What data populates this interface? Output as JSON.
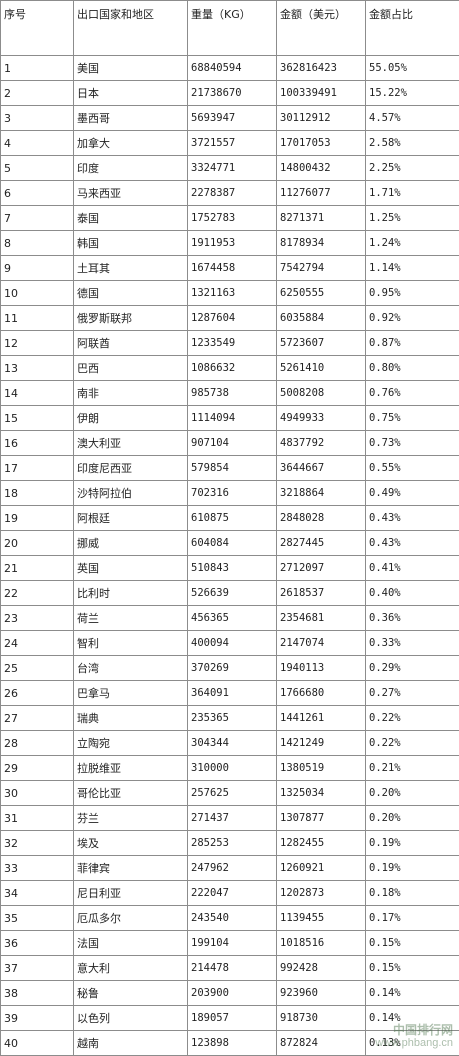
{
  "table": {
    "headers": [
      "序号",
      "出口国家和地区",
      "重量（KG）",
      "金额（美元）",
      "金额占比"
    ],
    "rows": [
      [
        "1",
        "美国",
        "68840594",
        "362816423",
        "55.05%"
      ],
      [
        "2",
        "日本",
        "21738670",
        "100339491",
        "15.22%"
      ],
      [
        "3",
        "墨西哥",
        "5693947",
        "30112912",
        "4.57%"
      ],
      [
        "4",
        "加拿大",
        "3721557",
        "17017053",
        "2.58%"
      ],
      [
        "5",
        "印度",
        "3324771",
        "14800432",
        "2.25%"
      ],
      [
        "6",
        "马来西亚",
        "2278387",
        "11276077",
        "1.71%"
      ],
      [
        "7",
        "泰国",
        "1752783",
        "8271371",
        "1.25%"
      ],
      [
        "8",
        "韩国",
        "1911953",
        "8178934",
        "1.24%"
      ],
      [
        "9",
        "土耳其",
        "1674458",
        "7542794",
        "1.14%"
      ],
      [
        "10",
        "德国",
        "1321163",
        "6250555",
        "0.95%"
      ],
      [
        "11",
        "俄罗斯联邦",
        "1287604",
        "6035884",
        "0.92%"
      ],
      [
        "12",
        "阿联酋",
        "1233549",
        "5723607",
        "0.87%"
      ],
      [
        "13",
        "巴西",
        "1086632",
        "5261410",
        "0.80%"
      ],
      [
        "14",
        "南非",
        "985738",
        "5008208",
        "0.76%"
      ],
      [
        "15",
        "伊朗",
        "1114094",
        "4949933",
        "0.75%"
      ],
      [
        "16",
        "澳大利亚",
        "907104",
        "4837792",
        "0.73%"
      ],
      [
        "17",
        "印度尼西亚",
        "579854",
        "3644667",
        "0.55%"
      ],
      [
        "18",
        "沙特阿拉伯",
        "702316",
        "3218864",
        "0.49%"
      ],
      [
        "19",
        "阿根廷",
        "610875",
        "2848028",
        "0.43%"
      ],
      [
        "20",
        "挪威",
        "604084",
        "2827445",
        "0.43%"
      ],
      [
        "21",
        "英国",
        "510843",
        "2712097",
        "0.41%"
      ],
      [
        "22",
        "比利时",
        "526639",
        "2618537",
        "0.40%"
      ],
      [
        "23",
        "荷兰",
        "456365",
        "2354681",
        "0.36%"
      ],
      [
        "24",
        "智利",
        "400094",
        "2147074",
        "0.33%"
      ],
      [
        "25",
        "台湾",
        "370269",
        "1940113",
        "0.29%"
      ],
      [
        "26",
        "巴拿马",
        "364091",
        "1766680",
        "0.27%"
      ],
      [
        "27",
        "瑞典",
        "235365",
        "1441261",
        "0.22%"
      ],
      [
        "28",
        "立陶宛",
        "304344",
        "1421249",
        "0.22%"
      ],
      [
        "29",
        "拉脱维亚",
        "310000",
        "1380519",
        "0.21%"
      ],
      [
        "30",
        "哥伦比亚",
        "257625",
        "1325034",
        "0.20%"
      ],
      [
        "31",
        "芬兰",
        "271437",
        "1307877",
        "0.20%"
      ],
      [
        "32",
        "埃及",
        "285253",
        "1282455",
        "0.19%"
      ],
      [
        "33",
        "菲律宾",
        "247962",
        "1260921",
        "0.19%"
      ],
      [
        "34",
        "尼日利亚",
        "222047",
        "1202873",
        "0.18%"
      ],
      [
        "35",
        "厄瓜多尔",
        "243540",
        "1139455",
        "0.17%"
      ],
      [
        "36",
        "法国",
        "199104",
        "1018516",
        "0.15%"
      ],
      [
        "37",
        "意大利",
        "214478",
        "992428",
        "0.15%"
      ],
      [
        "38",
        "秘鲁",
        "203900",
        "923960",
        "0.14%"
      ],
      [
        "39",
        "以色列",
        "189057",
        "918730",
        "0.14%"
      ],
      [
        "40",
        "越南",
        "123898",
        "872824",
        "0.13%"
      ]
    ]
  },
  "watermark": {
    "text_cn": "中国排行网",
    "text_url": "www.phbang.cn"
  }
}
